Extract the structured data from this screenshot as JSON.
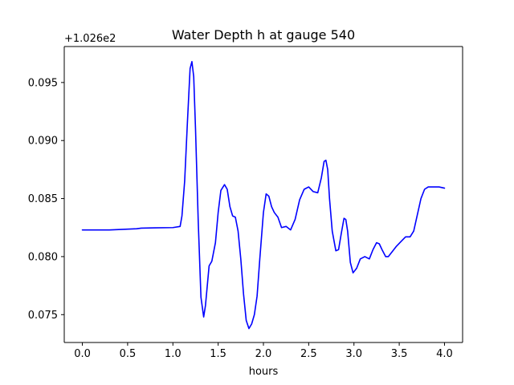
{
  "chart_data": {
    "type": "line",
    "title": "Water Depth h at gauge 540",
    "xlabel": "hours",
    "ylabel": "",
    "offset_label": "+1.026e2",
    "xlim": [
      -0.2,
      4.2
    ],
    "ylim": [
      0.0726,
      0.0981
    ],
    "xticks": [
      0.0,
      0.5,
      1.0,
      1.5,
      2.0,
      2.5,
      3.0,
      3.5,
      4.0
    ],
    "xtick_labels": [
      "0.0",
      "0.5",
      "1.0",
      "1.5",
      "2.0",
      "2.5",
      "3.0",
      "3.5",
      "4.0"
    ],
    "yticks": [
      0.075,
      0.08,
      0.085,
      0.09,
      0.095
    ],
    "ytick_labels": [
      "0.075",
      "0.080",
      "0.085",
      "0.090",
      "0.095"
    ],
    "grid": false,
    "series": [
      {
        "color": "#0000ff",
        "x": [
          0.0,
          0.3,
          0.6,
          0.65,
          0.8,
          1.0,
          1.08,
          1.1,
          1.13,
          1.16,
          1.19,
          1.21,
          1.23,
          1.25,
          1.28,
          1.31,
          1.34,
          1.36,
          1.4,
          1.43,
          1.47,
          1.5,
          1.53,
          1.57,
          1.6,
          1.63,
          1.66,
          1.69,
          1.72,
          1.75,
          1.78,
          1.81,
          1.84,
          1.87,
          1.9,
          1.93,
          1.96,
          2.0,
          2.03,
          2.06,
          2.09,
          2.12,
          2.16,
          2.2,
          2.25,
          2.3,
          2.35,
          2.4,
          2.45,
          2.5,
          2.55,
          2.6,
          2.64,
          2.67,
          2.69,
          2.71,
          2.73,
          2.76,
          2.8,
          2.83,
          2.86,
          2.89,
          2.91,
          2.93,
          2.96,
          2.99,
          3.03,
          3.07,
          3.12,
          3.17,
          3.21,
          3.25,
          3.28,
          3.31,
          3.35,
          3.38,
          3.42,
          3.47,
          3.52,
          3.57,
          3.62,
          3.66,
          3.7,
          3.74,
          3.78,
          3.82,
          3.88,
          3.94,
          4.0
        ],
        "y": [
          0.0823,
          0.0823,
          0.0824,
          0.08245,
          0.08248,
          0.0825,
          0.0826,
          0.0835,
          0.0865,
          0.0915,
          0.0962,
          0.0968,
          0.0955,
          0.091,
          0.083,
          0.0765,
          0.0748,
          0.0758,
          0.0792,
          0.0796,
          0.0812,
          0.0838,
          0.0857,
          0.0862,
          0.0858,
          0.0843,
          0.0835,
          0.0834,
          0.0822,
          0.0798,
          0.0768,
          0.0745,
          0.0738,
          0.0742,
          0.075,
          0.0766,
          0.0798,
          0.0838,
          0.0854,
          0.0852,
          0.0843,
          0.0838,
          0.0834,
          0.0825,
          0.0826,
          0.0823,
          0.0832,
          0.0849,
          0.0858,
          0.086,
          0.0856,
          0.0855,
          0.0868,
          0.0882,
          0.0883,
          0.0875,
          0.085,
          0.0822,
          0.0805,
          0.0806,
          0.082,
          0.0833,
          0.0832,
          0.0822,
          0.0795,
          0.0786,
          0.079,
          0.0798,
          0.08,
          0.0798,
          0.0806,
          0.0812,
          0.0811,
          0.0806,
          0.08,
          0.08,
          0.0804,
          0.0809,
          0.0813,
          0.0817,
          0.0817,
          0.0822,
          0.0836,
          0.085,
          0.0858,
          0.086,
          0.086,
          0.086,
          0.0859
        ]
      }
    ]
  }
}
